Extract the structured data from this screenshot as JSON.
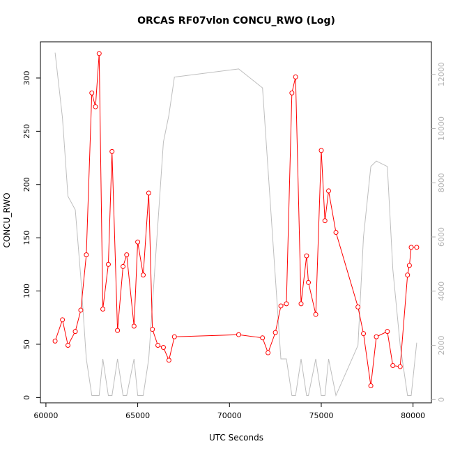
{
  "chart_data": {
    "type": "line",
    "title": "ORCAS RF07vlon CONCU_RWO (Log)",
    "xlabel": "UTC Seconds",
    "ylabel": "CONCU_RWO",
    "xlim": [
      59700,
      81000
    ],
    "ylim": [
      -5,
      334
    ],
    "xticks": [
      60000,
      65000,
      70000,
      75000,
      80000
    ],
    "yticks": [
      0,
      50,
      100,
      150,
      200,
      250,
      300
    ],
    "y2lim": [
      -120,
      13200
    ],
    "y2ticks": [
      0,
      2000,
      4000,
      6000,
      8000,
      10000,
      12000
    ],
    "grid": false,
    "legend": "none",
    "colors": {
      "primary": "#ff0000",
      "secondary": "#bebebe"
    },
    "series": [
      {
        "axis": "left",
        "marker": "circle",
        "x": [
          60500,
          60900,
          61200,
          61600,
          61900,
          62200,
          62500,
          62700,
          62900,
          63100,
          63400,
          63600,
          63900,
          64200,
          64400,
          64800,
          65000,
          65300,
          65600,
          65800,
          66100,
          66400,
          66700,
          67000,
          70500,
          71800,
          72100,
          72500,
          72800,
          73100,
          73400,
          73600,
          73900,
          74200,
          74300,
          74700,
          75000,
          75200,
          75400,
          75800,
          77000,
          77300,
          77700,
          78000,
          78600,
          78900,
          79300,
          79700,
          79800,
          79900,
          80200
        ],
        "y": [
          53,
          73,
          49,
          62,
          82,
          134,
          286,
          273,
          323,
          83,
          125,
          231,
          63,
          123,
          134,
          67,
          146,
          115,
          192,
          64,
          49,
          47,
          35,
          57,
          59,
          56,
          42,
          61,
          86,
          88,
          286,
          301,
          88,
          133,
          108,
          78,
          232,
          166,
          194,
          155,
          85,
          60,
          11,
          57,
          62,
          30,
          29,
          115,
          124,
          141,
          141
        ]
      },
      {
        "axis": "right",
        "marker": "none",
        "x": [
          60500,
          60900,
          61200,
          61600,
          61900,
          62200,
          62500,
          62700,
          62900,
          63100,
          63400,
          63600,
          63900,
          64200,
          64400,
          64800,
          65000,
          65300,
          65600,
          65800,
          66100,
          66400,
          66700,
          67000,
          70500,
          71800,
          72100,
          72500,
          72800,
          73100,
          73400,
          73600,
          73900,
          74200,
          74300,
          74700,
          75000,
          75200,
          75400,
          75800,
          77000,
          77300,
          77700,
          78000,
          78600,
          78900,
          79300,
          79700,
          79800,
          79900,
          80200
        ],
        "y": [
          12800,
          10400,
          7500,
          7000,
          4500,
          1500,
          150,
          150,
          150,
          1500,
          150,
          150,
          1500,
          150,
          150,
          1500,
          150,
          150,
          1500,
          3500,
          6500,
          9500,
          10500,
          11900,
          12200,
          11500,
          8500,
          4500,
          1500,
          1500,
          150,
          150,
          1500,
          150,
          150,
          1500,
          150,
          150,
          1500,
          150,
          2000,
          6000,
          8600,
          8800,
          8600,
          4800,
          2000,
          150,
          150,
          150,
          2100
        ]
      }
    ]
  }
}
